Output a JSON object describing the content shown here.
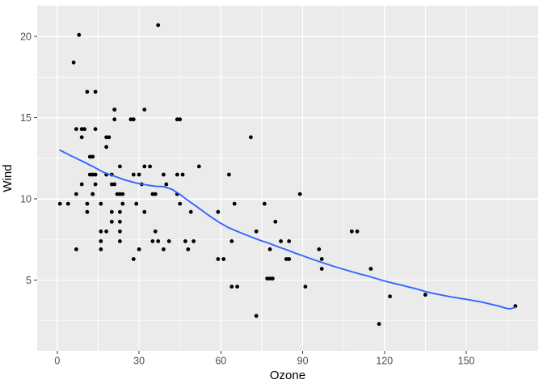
{
  "chart_data": {
    "type": "scatter",
    "title": "",
    "xlabel": "Ozone",
    "ylabel": "Wind",
    "legend": "none",
    "grid": "on",
    "xlim": [
      -7.35,
      176.35
    ],
    "ylim": [
      0.65,
      21.9
    ],
    "x_major_ticks": [
      0,
      30,
      60,
      90,
      120,
      150
    ],
    "y_major_ticks": [
      5,
      10,
      15,
      20
    ],
    "x_minor_ticks": [
      15,
      45,
      75,
      105,
      135,
      165
    ],
    "y_minor_ticks": [
      2.5,
      7.5,
      12.5,
      17.5
    ],
    "points": [
      [
        41,
        7.4
      ],
      [
        36,
        8.0
      ],
      [
        12,
        12.6
      ],
      [
        18,
        11.5
      ],
      [
        28,
        14.9
      ],
      [
        23,
        8.6
      ],
      [
        19,
        13.8
      ],
      [
        8,
        20.1
      ],
      [
        7,
        6.9
      ],
      [
        16,
        9.7
      ],
      [
        11,
        9.2
      ],
      [
        14,
        10.9
      ],
      [
        18,
        13.2
      ],
      [
        14,
        11.5
      ],
      [
        34,
        12.0
      ],
      [
        6,
        18.4
      ],
      [
        30,
        11.5
      ],
      [
        11,
        9.7
      ],
      [
        1,
        9.7
      ],
      [
        11,
        16.6
      ],
      [
        4,
        9.7
      ],
      [
        32,
        12.0
      ],
      [
        23,
        12.0
      ],
      [
        45,
        14.9
      ],
      [
        115,
        5.7
      ],
      [
        37,
        7.4
      ],
      [
        29,
        9.7
      ],
      [
        71,
        13.8
      ],
      [
        39,
        11.5
      ],
      [
        23,
        8.0
      ],
      [
        21,
        14.9
      ],
      [
        37,
        20.7
      ],
      [
        20,
        9.2
      ],
      [
        12,
        11.5
      ],
      [
        13,
        10.3
      ],
      [
        135,
        4.1
      ],
      [
        49,
        9.2
      ],
      [
        32,
        9.2
      ],
      [
        64,
        4.6
      ],
      [
        40,
        10.9
      ],
      [
        77,
        5.1
      ],
      [
        97,
        6.3
      ],
      [
        97,
        5.7
      ],
      [
        85,
        7.4
      ],
      [
        10,
        14.3
      ],
      [
        27,
        14.9
      ],
      [
        7,
        14.3
      ],
      [
        48,
        6.9
      ],
      [
        35,
        10.3
      ],
      [
        61,
        6.3
      ],
      [
        79,
        5.1
      ],
      [
        63,
        11.5
      ],
      [
        16,
        6.9
      ],
      [
        80,
        8.6
      ],
      [
        108,
        8.0
      ],
      [
        20,
        8.6
      ],
      [
        52,
        12.0
      ],
      [
        82,
        7.4
      ],
      [
        50,
        7.4
      ],
      [
        64,
        7.4
      ],
      [
        59,
        9.2
      ],
      [
        39,
        6.9
      ],
      [
        9,
        13.8
      ],
      [
        16,
        7.4
      ],
      [
        78,
        6.9
      ],
      [
        35,
        7.4
      ],
      [
        66,
        4.6
      ],
      [
        122,
        4.0
      ],
      [
        89,
        10.3
      ],
      [
        110,
        8.0
      ],
      [
        44,
        11.5
      ],
      [
        28,
        11.5
      ],
      [
        65,
        9.7
      ],
      [
        22,
        10.3
      ],
      [
        59,
        6.3
      ],
      [
        23,
        7.4
      ],
      [
        31,
        10.9
      ],
      [
        44,
        10.3
      ],
      [
        21,
        15.5
      ],
      [
        9,
        14.3
      ],
      [
        45,
        9.7
      ],
      [
        168,
        3.4
      ],
      [
        73,
        8.0
      ],
      [
        76,
        9.7
      ],
      [
        118,
        2.3
      ],
      [
        84,
        6.3
      ],
      [
        85,
        6.3
      ],
      [
        96,
        6.9
      ],
      [
        78,
        5.1
      ],
      [
        73,
        2.8
      ],
      [
        91,
        4.6
      ],
      [
        47,
        7.4
      ],
      [
        32,
        15.5
      ],
      [
        20,
        10.9
      ],
      [
        23,
        10.3
      ],
      [
        21,
        10.9
      ],
      [
        24,
        9.7
      ],
      [
        44,
        14.9
      ],
      [
        21,
        15.5
      ],
      [
        28,
        6.3
      ],
      [
        9,
        10.9
      ],
      [
        13,
        11.5
      ],
      [
        46,
        11.5
      ],
      [
        18,
        13.8
      ],
      [
        13,
        10.3
      ],
      [
        24,
        10.3
      ],
      [
        16,
        8.0
      ],
      [
        13,
        12.6
      ],
      [
        23,
        9.2
      ],
      [
        36,
        10.3
      ],
      [
        7,
        10.3
      ],
      [
        14,
        16.6
      ],
      [
        30,
        6.9
      ],
      [
        14,
        14.3
      ],
      [
        18,
        8.0
      ],
      [
        20,
        11.5
      ]
    ],
    "smooth_line": {
      "name": "loess-smooth",
      "points": [
        [
          1,
          13.0
        ],
        [
          5,
          12.66
        ],
        [
          9,
          12.34
        ],
        [
          13,
          12.0
        ],
        [
          17,
          11.64
        ],
        [
          21,
          11.4
        ],
        [
          25,
          11.16
        ],
        [
          29,
          10.98
        ],
        [
          33,
          10.85
        ],
        [
          36,
          10.78
        ],
        [
          39,
          10.76
        ],
        [
          42,
          10.6
        ],
        [
          45,
          10.28
        ],
        [
          48,
          9.9
        ],
        [
          51,
          9.55
        ],
        [
          54,
          9.18
        ],
        [
          57,
          8.82
        ],
        [
          60,
          8.5
        ],
        [
          63,
          8.22
        ],
        [
          66,
          8.0
        ],
        [
          69,
          7.8
        ],
        [
          72,
          7.6
        ],
        [
          75,
          7.42
        ],
        [
          78,
          7.25
        ],
        [
          81,
          7.05
        ],
        [
          84,
          6.88
        ],
        [
          87,
          6.68
        ],
        [
          90,
          6.5
        ],
        [
          93,
          6.32
        ],
        [
          96,
          6.15
        ],
        [
          99,
          5.98
        ],
        [
          102,
          5.82
        ],
        [
          105,
          5.67
        ],
        [
          108,
          5.52
        ],
        [
          111,
          5.38
        ],
        [
          114,
          5.25
        ],
        [
          117,
          5.1
        ],
        [
          120,
          4.95
        ],
        [
          123,
          4.82
        ],
        [
          126,
          4.7
        ],
        [
          129,
          4.57
        ],
        [
          132,
          4.45
        ],
        [
          135,
          4.3
        ],
        [
          138,
          4.18
        ],
        [
          141,
          4.08
        ],
        [
          144,
          3.98
        ],
        [
          147,
          3.9
        ],
        [
          150,
          3.82
        ],
        [
          153,
          3.73
        ],
        [
          156,
          3.64
        ],
        [
          159,
          3.52
        ],
        [
          162,
          3.4
        ],
        [
          164,
          3.3
        ],
        [
          166,
          3.23
        ],
        [
          168,
          3.32
        ]
      ]
    },
    "colors": {
      "background": "#FFFFFF",
      "panel_bg": "#EBEBEB",
      "grid": "#FFFFFF",
      "point": "#000000",
      "smooth_line": "#3366FF",
      "tick_mark": "#333333",
      "tick_label": "#4D4D4D",
      "axis_title": "#000000"
    }
  }
}
